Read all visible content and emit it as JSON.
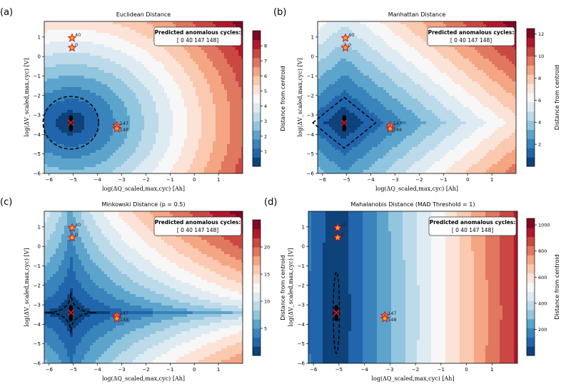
{
  "panels": [
    {
      "letter": "(a)",
      "title": "Euclidean Distance",
      "metric": "euclidean",
      "xlim": [
        -6.2,
        2.0
      ],
      "ylim": [
        -6.0,
        1.8
      ],
      "xticks": [
        -6,
        -5,
        -4,
        -3,
        -2,
        -1,
        0,
        1
      ],
      "yticks": [
        1,
        0,
        -1,
        -2,
        -3,
        -4,
        -5,
        -6
      ],
      "xlabel": "log(ΔQ_scaled,max,cyc) [Ah]",
      "ylabel": "log(ΔV_scaled,max,cyc) [V]",
      "colorbar_label": "Distance from centroid",
      "colorbar_range": [
        0,
        9
      ],
      "colorbar_ticks": [
        1,
        2,
        3,
        4,
        5,
        6,
        7,
        8
      ],
      "annotation_title": "Predicted anomalous cycles:",
      "annotation_values": "[ 0 40 147 148]",
      "centroid": [
        -5.1,
        -3.4
      ],
      "anomalies": [
        {
          "label": "40",
          "x": -5.05,
          "y": 0.95
        },
        {
          "label": "0",
          "x": -5.05,
          "y": 0.45
        },
        {
          "label": "147",
          "x": -3.2,
          "y": -3.55
        },
        {
          "label": "148",
          "x": -3.2,
          "y": -3.7
        }
      ],
      "threshold_shape": {
        "type": "ellipse",
        "rx": 1.15,
        "ry": 1.35
      }
    },
    {
      "letter": "(b)",
      "title": "Manhattan Distance",
      "metric": "manhattan",
      "xlim": [
        -6.2,
        2.0
      ],
      "ylim": [
        -6.0,
        1.8
      ],
      "xticks": [
        -6,
        -5,
        -4,
        -3,
        -2,
        -1,
        0,
        1
      ],
      "yticks": [
        1,
        0,
        -1,
        -2,
        -3,
        -4,
        -5,
        -6
      ],
      "xlabel": "log(ΔQ_scaled,max,cyc) [Ah]",
      "ylabel": "log(ΔV_scaled,max,cyc) [V]",
      "colorbar_label": "Distance from centroid",
      "colorbar_range": [
        0,
        12.5
      ],
      "colorbar_ticks": [
        2,
        4,
        6,
        8,
        10,
        12
      ],
      "annotation_title": "Predicted anomalous cycles:",
      "annotation_values": "[ 0 40 147 148]",
      "centroid": [
        -5.1,
        -3.4
      ],
      "anomalies": [
        {
          "label": "40",
          "x": -5.05,
          "y": 0.95
        },
        {
          "label": "0",
          "x": -5.05,
          "y": 0.45
        },
        {
          "label": "147",
          "x": -3.2,
          "y": -3.55
        },
        {
          "label": "148",
          "x": -3.2,
          "y": -3.7
        }
      ],
      "threshold_shape": {
        "type": "diamond",
        "r": 1.3
      }
    },
    {
      "letter": "(c)",
      "title": "Minkowski Distance (p = 0.5)",
      "metric": "minkowski",
      "xlim": [
        -6.2,
        2.0
      ],
      "ylim": [
        -6.0,
        1.8
      ],
      "xticks": [
        -6,
        -5,
        -4,
        -3,
        -2,
        -1,
        0,
        1
      ],
      "yticks": [
        1,
        0,
        -1,
        -2,
        -3,
        -4,
        -5,
        -6
      ],
      "xlabel": "log(ΔQ_scaled,max,cyc) [Ah]",
      "ylabel": "log(ΔV_scaled,max,cyc) [V]",
      "colorbar_label": "Distance from centroid",
      "colorbar_range": [
        0,
        25
      ],
      "colorbar_ticks": [
        5,
        10,
        15,
        20
      ],
      "annotation_title": "Predicted anomalous cycles:",
      "annotation_values": "[ 0 40 147 148]",
      "centroid": [
        -5.1,
        -3.4
      ],
      "anomalies": [
        {
          "label": "40",
          "x": -5.05,
          "y": 0.95
        },
        {
          "label": "0",
          "x": -5.05,
          "y": 0.45
        },
        {
          "label": "147",
          "x": -3.2,
          "y": -3.55
        },
        {
          "label": "148",
          "x": -3.2,
          "y": -3.7
        }
      ],
      "threshold_shape": {
        "type": "astroid",
        "r": 1.05
      }
    },
    {
      "letter": "(d)",
      "title": "Mahalanobis Distance (MAD Threshold = 1)",
      "metric": "mahalanobis",
      "xlim": [
        -6.2,
        2.0
      ],
      "ylim": [
        -6.0,
        1.8
      ],
      "xticks": [
        -6,
        -5,
        -4,
        -3,
        -2,
        -1,
        0,
        1
      ],
      "yticks": [
        1,
        0,
        -1,
        -2,
        -3,
        -4,
        -5,
        -6
      ],
      "xlabel": "log(ΔQ_scaled,max,cyc) [Ah]",
      "ylabel": "log(ΔV_scaled,max,cyc) [V]",
      "colorbar_label": "Distance from centroid",
      "colorbar_range": [
        0,
        1050
      ],
      "colorbar_ticks": [
        200,
        400,
        600,
        800,
        1000
      ],
      "annotation_title": "Predicted anomalous cycles:",
      "annotation_values": "[ 0 40 147 148]",
      "centroid": [
        -5.1,
        -3.4
      ],
      "anomalies": [
        {
          "label": "40",
          "x": -5.05,
          "y": 0.95
        },
        {
          "label": "0",
          "x": -5.05,
          "y": 0.45
        },
        {
          "label": "147",
          "x": -3.2,
          "y": -3.55
        },
        {
          "label": "148",
          "x": -3.2,
          "y": -3.7
        }
      ],
      "threshold_shape": {
        "type": "ellipse",
        "rx": 0.12,
        "ry": 2.1
      }
    }
  ],
  "chart_data": [
    {
      "type": "heatmap",
      "title": "Euclidean Distance",
      "xlabel": "log(ΔQ_scaled,max,cyc) [Ah]",
      "ylabel": "log(ΔV_scaled,max,cyc) [V]",
      "xlim": [
        -6.2,
        2.0
      ],
      "ylim": [
        -6.0,
        1.8
      ],
      "colorbar_range": [
        0,
        9
      ],
      "anomalous_cycles": [
        0,
        40,
        147,
        148
      ],
      "centroid": [
        -5.1,
        -3.4
      ]
    },
    {
      "type": "heatmap",
      "title": "Manhattan Distance",
      "xlabel": "log(ΔQ_scaled,max,cyc) [Ah]",
      "ylabel": "log(ΔV_scaled,max,cyc) [V]",
      "xlim": [
        -6.2,
        2.0
      ],
      "ylim": [
        -6.0,
        1.8
      ],
      "colorbar_range": [
        0,
        12.5
      ],
      "anomalous_cycles": [
        0,
        40,
        147,
        148
      ],
      "centroid": [
        -5.1,
        -3.4
      ]
    },
    {
      "type": "heatmap",
      "title": "Minkowski Distance (p = 0.5)",
      "xlabel": "log(ΔQ_scaled,max,cyc) [Ah]",
      "ylabel": "log(ΔV_scaled,max,cyc) [V]",
      "xlim": [
        -6.2,
        2.0
      ],
      "ylim": [
        -6.0,
        1.8
      ],
      "colorbar_range": [
        0,
        25
      ],
      "anomalous_cycles": [
        0,
        40,
        147,
        148
      ],
      "centroid": [
        -5.1,
        -3.4
      ]
    },
    {
      "type": "heatmap",
      "title": "Mahalanobis Distance (MAD Threshold = 1)",
      "xlabel": "log(ΔQ_scaled,max,cyc) [Ah]",
      "ylabel": "log(ΔV_scaled,max,cyc) [V]",
      "xlim": [
        -6.2,
        2.0
      ],
      "ylim": [
        -6.0,
        1.8
      ],
      "colorbar_range": [
        0,
        1050
      ],
      "anomalous_cycles": [
        0,
        40,
        147,
        148
      ],
      "centroid": [
        -5.1,
        -3.4
      ]
    }
  ]
}
